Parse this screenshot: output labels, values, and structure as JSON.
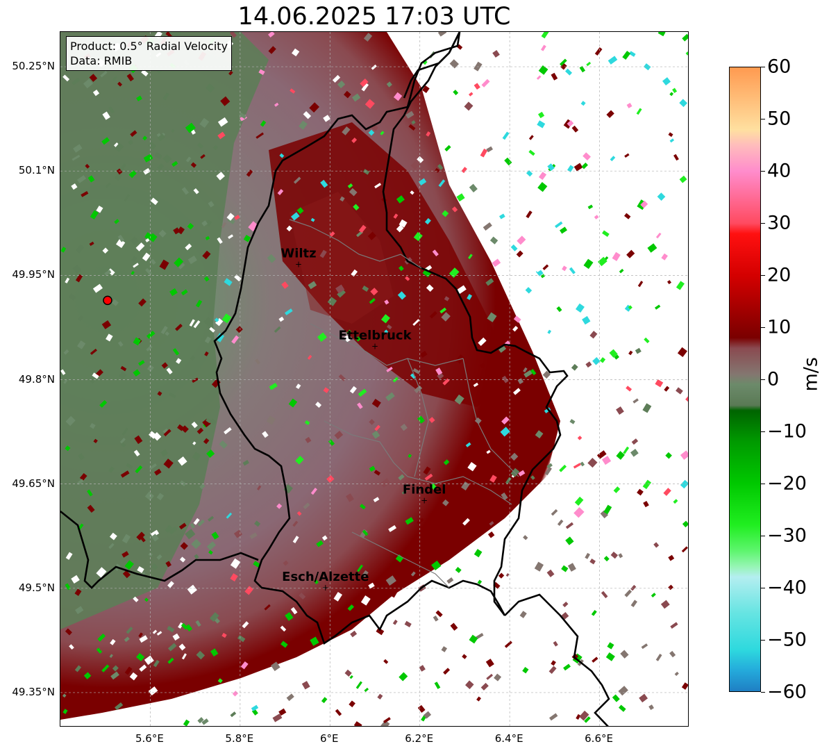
{
  "title": "14.06.2025 17:03 UTC",
  "info": {
    "product": "Product: 0.5° Radial Velocity",
    "source": "Data: RMIB"
  },
  "map": {
    "lon_range": [
      5.4,
      6.8
    ],
    "lat_range": [
      49.3,
      50.3
    ],
    "lat_ticks": [
      {
        "value": 50.25,
        "label": "50.25°N"
      },
      {
        "value": 50.1,
        "label": "50.1°N"
      },
      {
        "value": 49.95,
        "label": "49.95°N"
      },
      {
        "value": 49.8,
        "label": "49.8°N"
      },
      {
        "value": 49.65,
        "label": "49.65°N"
      },
      {
        "value": 49.5,
        "label": "49.5°N"
      },
      {
        "value": 49.35,
        "label": "49.35°N"
      }
    ],
    "lon_ticks": [
      {
        "value": 5.6,
        "label": "5.6°E"
      },
      {
        "value": 5.8,
        "label": "5.8°E"
      },
      {
        "value": 6.0,
        "label": "6°E"
      },
      {
        "value": 6.2,
        "label": "6.2°E"
      },
      {
        "value": 6.4,
        "label": "6.4°E"
      },
      {
        "value": 6.6,
        "label": "6.6°E"
      }
    ],
    "radar_site": {
      "lon": 5.505,
      "lat": 49.914,
      "color": "#ff0000"
    },
    "cities": [
      {
        "name": "Wiltz",
        "lon": 5.93,
        "lat": 49.966
      },
      {
        "name": "Ettelbruck",
        "lon": 6.1,
        "lat": 49.848
      },
      {
        "name": "Findel",
        "lon": 6.21,
        "lat": 49.626
      },
      {
        "name": "Esch/Alzette",
        "lon": 5.99,
        "lat": 49.501
      }
    ]
  },
  "colorbar": {
    "unit": "m/s",
    "min": -60,
    "max": 60,
    "ticks": [
      {
        "value": 60,
        "label": "60"
      },
      {
        "value": 50,
        "label": "50"
      },
      {
        "value": 40,
        "label": "40"
      },
      {
        "value": 30,
        "label": "30"
      },
      {
        "value": 20,
        "label": "20"
      },
      {
        "value": 10,
        "label": "10"
      },
      {
        "value": 0,
        "label": "0"
      },
      {
        "value": -10,
        "label": "−10"
      },
      {
        "value": -20,
        "label": "−20"
      },
      {
        "value": -30,
        "label": "−30"
      },
      {
        "value": -40,
        "label": "−40"
      },
      {
        "value": -50,
        "label": "−50"
      },
      {
        "value": -60,
        "label": "−60"
      }
    ],
    "stops": [
      {
        "value": -60,
        "color": "#1f7fc4"
      },
      {
        "value": -56,
        "color": "#24aadb"
      },
      {
        "value": -52,
        "color": "#2ed9de"
      },
      {
        "value": -45,
        "color": "#66e4e2"
      },
      {
        "value": -38,
        "color": "#b4eef0"
      },
      {
        "value": -36,
        "color": "#96f5b4"
      },
      {
        "value": -33,
        "color": "#5ef56e"
      },
      {
        "value": -28,
        "color": "#20ee20"
      },
      {
        "value": -20,
        "color": "#00c800"
      },
      {
        "value": -12,
        "color": "#009a00"
      },
      {
        "value": -6,
        "color": "#006400"
      },
      {
        "value": -5,
        "color": "#5a7a55"
      },
      {
        "value": -1,
        "color": "#6c8a6a"
      },
      {
        "value": 1,
        "color": "#847670"
      },
      {
        "value": 6,
        "color": "#8a4a50"
      },
      {
        "value": 8,
        "color": "#7a0000"
      },
      {
        "value": 20,
        "color": "#d40000"
      },
      {
        "value": 28,
        "color": "#ff1010"
      },
      {
        "value": 30,
        "color": "#ff4a60"
      },
      {
        "value": 40,
        "color": "#ff8ccc"
      },
      {
        "value": 45,
        "color": "#ffbcbc"
      },
      {
        "value": 48,
        "color": "#ffe0a0"
      },
      {
        "value": 60,
        "color": "#ff9a50"
      }
    ]
  }
}
